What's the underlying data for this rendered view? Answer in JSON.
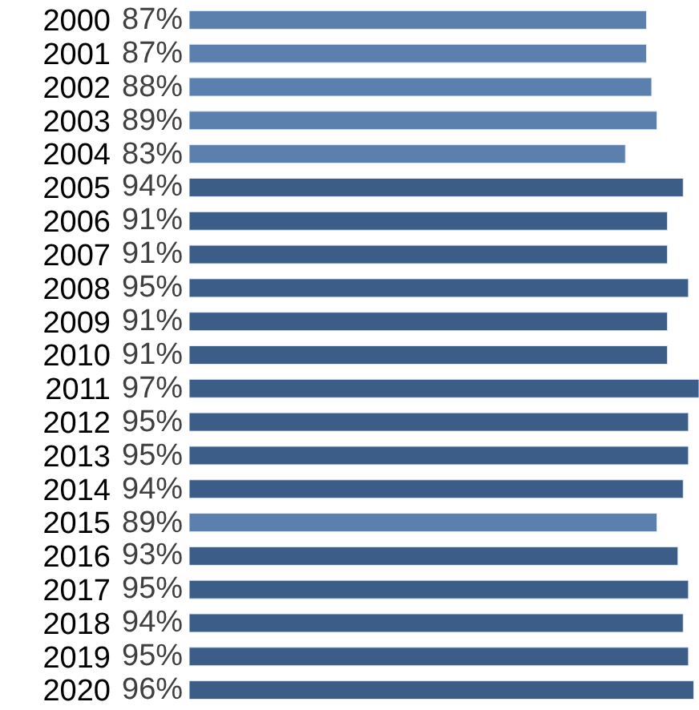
{
  "chart_data": {
    "type": "bar",
    "orientation": "horizontal",
    "tick_labels": "y",
    "categories": [
      "2000",
      "2001",
      "2002",
      "2003",
      "2004",
      "2005",
      "2006",
      "2007",
      "2008",
      "2009",
      "2010",
      "2011",
      "2012",
      "2013",
      "2014",
      "2015",
      "2016",
      "2017",
      "2018",
      "2019",
      "2020"
    ],
    "values": [
      87,
      87,
      88,
      89,
      83,
      94,
      91,
      91,
      95,
      91,
      91,
      97,
      95,
      95,
      94,
      89,
      93,
      95,
      94,
      95,
      96
    ],
    "value_labels": [
      "87%",
      "87%",
      "88%",
      "89%",
      "83%",
      "94%",
      "91%",
      "91%",
      "95%",
      "91%",
      "91%",
      "97%",
      "95%",
      "95%",
      "94%",
      "89%",
      "93%",
      "95%",
      "94%",
      "95%",
      "96%"
    ],
    "colors": [
      "#5b80ad",
      "#5b80ad",
      "#5b80ad",
      "#5b80ad",
      "#5b80ad",
      "#3b5d88",
      "#3b5d88",
      "#3b5d88",
      "#3b5d88",
      "#3b5d88",
      "#3b5d88",
      "#3b5d88",
      "#3b5d88",
      "#3b5d88",
      "#3b5d88",
      "#5b80ad",
      "#3b5d88",
      "#3b5d88",
      "#3b5d88",
      "#3b5d88",
      "#3b5d88"
    ],
    "legend": false
  }
}
